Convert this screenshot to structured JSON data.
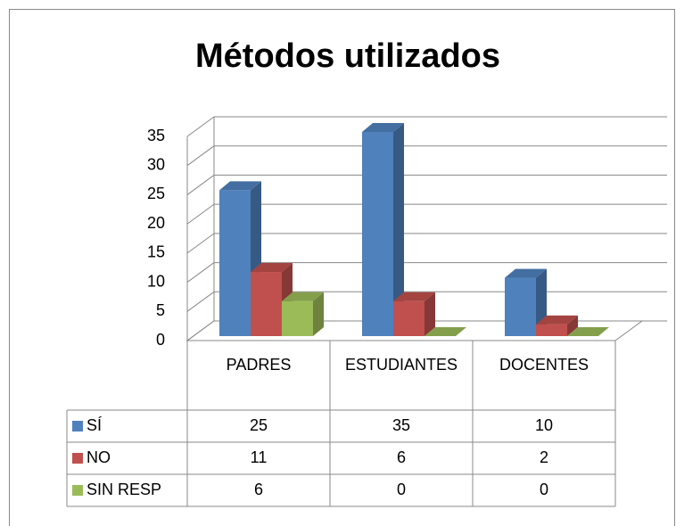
{
  "chart_data": {
    "type": "bar3d",
    "title": "Métodos utilizados",
    "categories": [
      "PADRES",
      "ESTUDIANTES",
      "DOCENTES"
    ],
    "series": [
      {
        "name": "SÍ",
        "color": "#4f81bd",
        "values": [
          25,
          35,
          10
        ]
      },
      {
        "name": "NO",
        "color": "#c0504d",
        "values": [
          11,
          6,
          2
        ]
      },
      {
        "name": "SIN RESP",
        "color": "#9bbb59",
        "values": [
          6,
          0,
          0
        ]
      }
    ],
    "ylim": [
      0,
      35
    ],
    "yticks": [
      0,
      5,
      10,
      15,
      20,
      25,
      30,
      35
    ],
    "grid": true,
    "data_table": true
  }
}
